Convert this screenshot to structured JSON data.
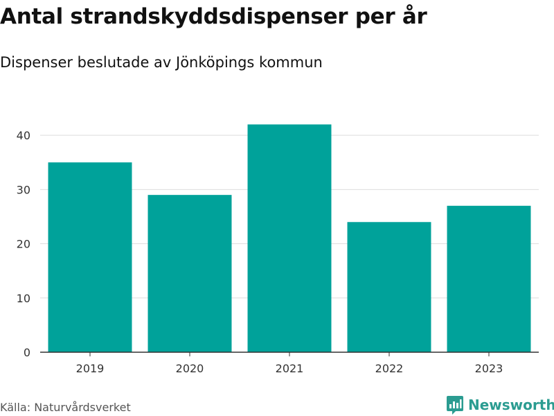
{
  "header": {
    "title": "Antal strandskyddsdispenser per år",
    "subtitle": "Dispenser beslutade av Jönköpings kommun"
  },
  "footer": {
    "source": "Källa: Naturvårdsverket",
    "brand": "Newsworthy"
  },
  "colors": {
    "bar": "#00a29a",
    "grid": "#dddddd",
    "axis": "#333333",
    "brand": "#2b9c91"
  },
  "icons": {
    "brand_logo": "newsworthy-logo-icon"
  },
  "chart_data": {
    "type": "bar",
    "title": "Antal strandskyddsdispenser per år",
    "subtitle": "Dispenser beslutade av Jönköpings kommun",
    "categories": [
      "2019",
      "2020",
      "2021",
      "2022",
      "2023"
    ],
    "values": [
      35,
      29,
      42,
      24,
      27
    ],
    "xlabel": "",
    "ylabel": "",
    "ylim": [
      0,
      45
    ],
    "yticks": [
      0,
      10,
      20,
      30,
      40
    ],
    "grid": true,
    "legend": "none"
  }
}
